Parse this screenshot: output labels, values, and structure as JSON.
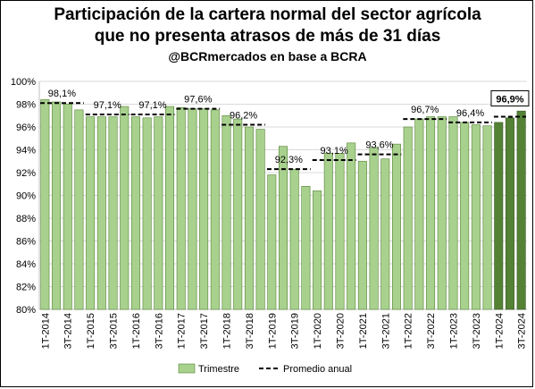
{
  "chart_data": {
    "type": "bar",
    "title": "Participación de la cartera normal del sector agrícola",
    "subtitle": "que no presenta atrasos de más de 31 días",
    "source": "@BCRmercados en base a BCRA",
    "ylim": [
      80,
      100
    ],
    "yticks": [
      "80%",
      "82%",
      "84%",
      "86%",
      "88%",
      "90%",
      "92%",
      "94%",
      "96%",
      "98%",
      "100%"
    ],
    "grid": true,
    "legend_position": "bottom",
    "categories": [
      "1T-2014",
      "2T-2014",
      "3T-2014",
      "4T-2014",
      "1T-2015",
      "2T-2015",
      "3T-2015",
      "4T-2015",
      "1T-2016",
      "2T-2016",
      "3T-2016",
      "4T-2016",
      "1T-2017",
      "2T-2017",
      "3T-2017",
      "4T-2017",
      "1T-2018",
      "2T-2018",
      "3T-2018",
      "4T-2018",
      "1T-2019",
      "2T-2019",
      "3T-2019",
      "4T-2019",
      "1T-2020",
      "2T-2020",
      "3T-2020",
      "4T-2020",
      "1T-2021",
      "2T-2021",
      "3T-2021",
      "4T-2021",
      "1T-2022",
      "2T-2022",
      "3T-2022",
      "4T-2022",
      "1T-2023",
      "2T-2023",
      "3T-2023",
      "4T-2023",
      "1T-2024",
      "2T-2024",
      "3T-2024"
    ],
    "x_tick_labels": [
      "1T-2014",
      "3T-2014",
      "1T-2015",
      "3T-2015",
      "1T-2016",
      "3T-2016",
      "1T-2017",
      "3T-2017",
      "1T-2018",
      "3T-2018",
      "1T-2019",
      "3T-2019",
      "1T-2020",
      "3T-2020",
      "1T-2021",
      "3T-2021",
      "1T-2022",
      "3T-2022",
      "1T-2023",
      "3T-2023",
      "1T-2024",
      "3T-2024"
    ],
    "series": [
      {
        "name": "Trimestre",
        "color": "#a9d18e",
        "highlight_color": "#548235",
        "highlight_from_index": 40,
        "values": [
          98.4,
          98.2,
          98.0,
          97.5,
          96.9,
          96.9,
          96.9,
          97.8,
          96.9,
          96.8,
          96.9,
          97.8,
          97.7,
          97.6,
          97.6,
          97.5,
          97.0,
          96.7,
          96.0,
          95.8,
          91.8,
          94.3,
          92.3,
          90.8,
          90.4,
          93.7,
          93.7,
          94.6,
          93.0,
          94.2,
          93.2,
          94.5,
          96.0,
          96.7,
          96.9,
          96.9,
          96.9,
          96.4,
          96.2,
          96.1,
          96.4,
          96.8,
          97.4
        ]
      },
      {
        "name": "Promedio anual",
        "type": "line",
        "style": "dashed",
        "color": "#000000",
        "annual": [
          {
            "start": 0,
            "end": 3,
            "value": 98.1,
            "label": "98,1%"
          },
          {
            "start": 4,
            "end": 7,
            "value": 97.1,
            "label": "97,1%"
          },
          {
            "start": 8,
            "end": 11,
            "value": 97.1,
            "label": "97,1%"
          },
          {
            "start": 12,
            "end": 15,
            "value": 97.6,
            "label": "97,6%"
          },
          {
            "start": 16,
            "end": 19,
            "value": 96.2,
            "label": "96,2%"
          },
          {
            "start": 20,
            "end": 23,
            "value": 92.3,
            "label": "92,3%"
          },
          {
            "start": 24,
            "end": 27,
            "value": 93.1,
            "label": "93,1%"
          },
          {
            "start": 28,
            "end": 31,
            "value": 93.6,
            "label": "93,6%"
          },
          {
            "start": 32,
            "end": 35,
            "value": 96.7,
            "label": "96,7%"
          },
          {
            "start": 36,
            "end": 39,
            "value": 96.4,
            "label": "96,4%"
          },
          {
            "start": 40,
            "end": 42,
            "value": 96.9,
            "label": "96,9%",
            "boxed": true
          }
        ]
      }
    ]
  }
}
